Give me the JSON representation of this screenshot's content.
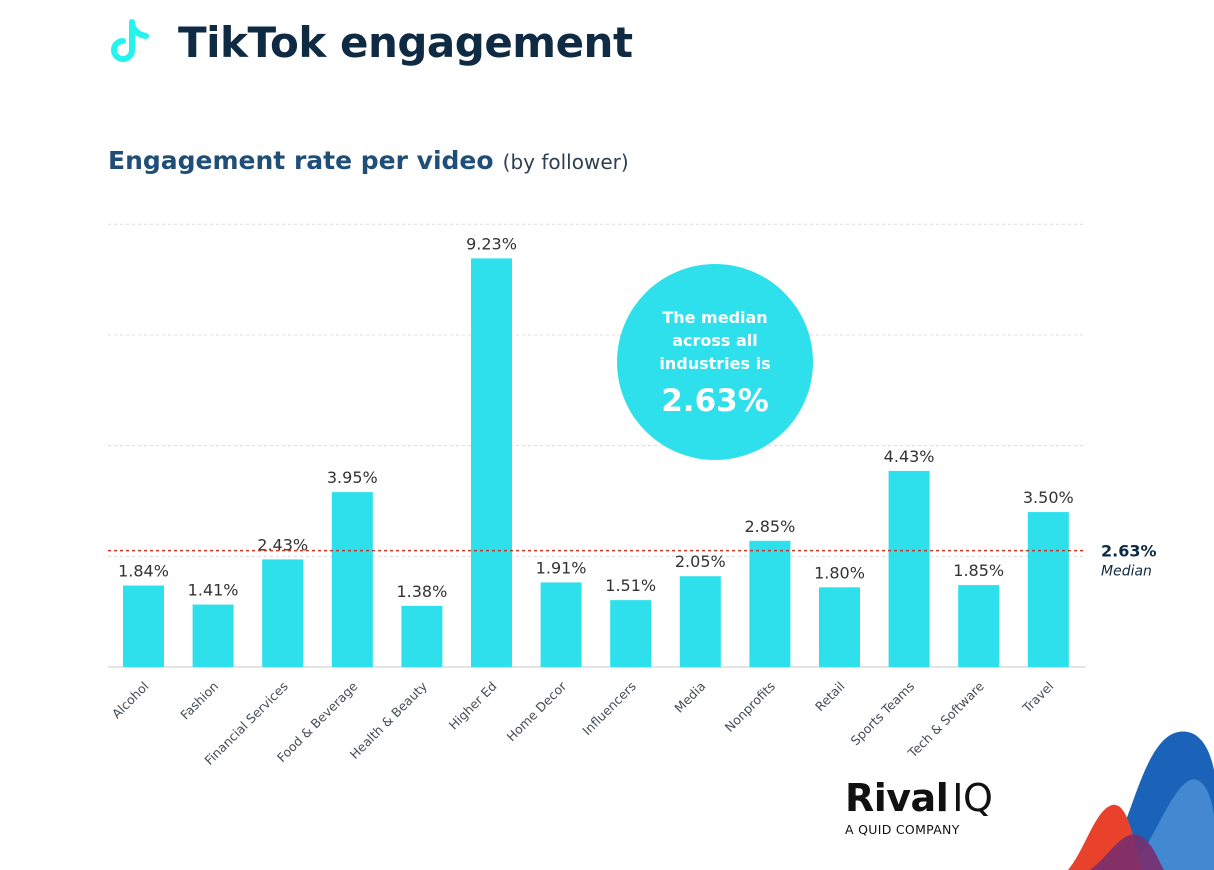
{
  "header": {
    "icon": "tiktok-note-icon",
    "title": "TikTok engagement"
  },
  "subtitle": {
    "main": "Engagement rate per video",
    "sub": "(by follower)"
  },
  "callout": {
    "lines": [
      "The median",
      "across all",
      "industries is"
    ],
    "value": "2.63%"
  },
  "median_marker": {
    "value_label": "2.63%",
    "word": "Median"
  },
  "logo": {
    "word": "Rival",
    "suffix": "IQ",
    "tagline": "A QUID COMPANY"
  },
  "colors": {
    "bar": "#2ee0ec",
    "title": "#0f2a43",
    "subtitle": "#1f4e79",
    "median_line": "#c0392b",
    "grid": "#dcdcdc"
  },
  "chart_data": {
    "type": "bar",
    "title": "Engagement rate per video",
    "subtitle": "(by follower)",
    "categories": [
      "Alcohol",
      "Fashion",
      "Financial Services",
      "Food & Beverage",
      "Health & Beauty",
      "Higher Ed",
      "Home Decor",
      "Influencers",
      "Media",
      "Nonprofits",
      "Retail",
      "Sports Teams",
      "Tech & Software",
      "Travel"
    ],
    "values": [
      1.84,
      1.41,
      2.43,
      3.95,
      1.38,
      9.23,
      1.91,
      1.51,
      2.05,
      2.85,
      1.8,
      4.43,
      1.85,
      3.5
    ],
    "value_labels": [
      "1.84%",
      "1.41%",
      "2.43%",
      "3.95%",
      "1.38%",
      "9.23%",
      "1.91%",
      "1.51%",
      "2.05%",
      "2.85%",
      "1.80%",
      "4.43%",
      "1.85%",
      "3.50%"
    ],
    "ylim": [
      0,
      10
    ],
    "unit": "%",
    "median": 2.63,
    "grid": true,
    "gridlines": [
      0,
      2.5,
      5,
      7.5,
      10
    ],
    "legend": "none"
  }
}
